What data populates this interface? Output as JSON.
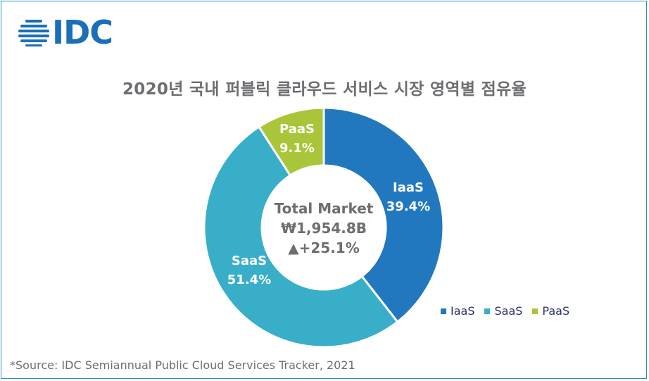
{
  "brand": {
    "logo_text": "IDC",
    "logo_color": "#1a6fb8"
  },
  "title": "2020년 국내 퍼블릭 클라우드 서비스 시장 영역별 점유율",
  "source": "*Source: IDC Semiannual Public Cloud Services Tracker, 2021",
  "center_label": {
    "line1": "Total Market",
    "line2": "₩1,954.8B",
    "line3": "▲+25.1%"
  },
  "chart_data": {
    "type": "pie",
    "title": "2020년 국내 퍼블릭 클라우드 서비스 시장 영역별 점유율",
    "donut": true,
    "categories": [
      "IaaS",
      "SaaS",
      "PaaS"
    ],
    "values": [
      39.4,
      51.4,
      9.1
    ],
    "value_labels": [
      "39.4%",
      "51.4%",
      "9.1%"
    ],
    "colors": [
      "#2278bf",
      "#38aec9",
      "#a9c63a"
    ],
    "legend_placement": "bottom-right"
  }
}
